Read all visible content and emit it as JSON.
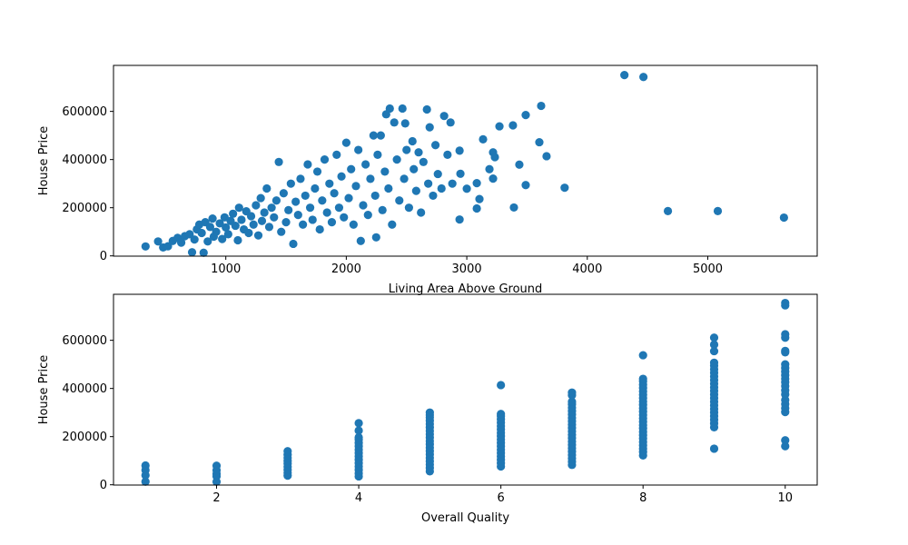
{
  "chart_data": [
    {
      "type": "scatter",
      "xlabel": "Living Area Above Ground",
      "ylabel": "House Price",
      "xlim": [
        68,
        5908
      ],
      "ylim": [
        -1105,
        791005
      ],
      "xticks": [
        1000,
        2000,
        3000,
        4000,
        5000
      ],
      "yticks": [
        0,
        200000,
        400000,
        600000
      ],
      "grid": false,
      "color": "#1f77b4",
      "points": [
        [
          334,
          39300
        ],
        [
          438,
          60000
        ],
        [
          480,
          35000
        ],
        [
          520,
          40000
        ],
        [
          560,
          62000
        ],
        [
          600,
          75000
        ],
        [
          630,
          55000
        ],
        [
          660,
          82000
        ],
        [
          700,
          90000
        ],
        [
          720,
          15000
        ],
        [
          740,
          68000
        ],
        [
          760,
          110000
        ],
        [
          780,
          130000
        ],
        [
          800,
          95000
        ],
        [
          816,
          13000
        ],
        [
          830,
          140000
        ],
        [
          850,
          60000
        ],
        [
          870,
          120000
        ],
        [
          890,
          155000
        ],
        [
          900,
          80000
        ],
        [
          920,
          100000
        ],
        [
          950,
          135000
        ],
        [
          970,
          70000
        ],
        [
          990,
          160000
        ],
        [
          1000,
          118000
        ],
        [
          1020,
          90000
        ],
        [
          1040,
          145000
        ],
        [
          1060,
          175000
        ],
        [
          1080,
          125000
        ],
        [
          1100,
          65000
        ],
        [
          1110,
          200000
        ],
        [
          1130,
          150000
        ],
        [
          1150,
          110000
        ],
        [
          1170,
          185000
        ],
        [
          1190,
          95000
        ],
        [
          1210,
          165000
        ],
        [
          1230,
          130000
        ],
        [
          1250,
          210000
        ],
        [
          1270,
          85000
        ],
        [
          1290,
          240000
        ],
        [
          1300,
          145000
        ],
        [
          1320,
          180000
        ],
        [
          1340,
          280000
        ],
        [
          1360,
          120000
        ],
        [
          1380,
          200000
        ],
        [
          1400,
          160000
        ],
        [
          1420,
          230000
        ],
        [
          1440,
          390000
        ],
        [
          1460,
          100000
        ],
        [
          1480,
          260000
        ],
        [
          1500,
          140000
        ],
        [
          1520,
          190000
        ],
        [
          1540,
          300000
        ],
        [
          1560,
          50000
        ],
        [
          1580,
          225000
        ],
        [
          1600,
          170000
        ],
        [
          1620,
          320000
        ],
        [
          1640,
          130000
        ],
        [
          1660,
          250000
        ],
        [
          1680,
          380000
        ],
        [
          1700,
          200000
        ],
        [
          1720,
          150000
        ],
        [
          1740,
          280000
        ],
        [
          1760,
          350000
        ],
        [
          1780,
          110000
        ],
        [
          1800,
          230000
        ],
        [
          1820,
          400000
        ],
        [
          1840,
          180000
        ],
        [
          1860,
          300000
        ],
        [
          1880,
          140000
        ],
        [
          1900,
          260000
        ],
        [
          1920,
          420000
        ],
        [
          1940,
          200000
        ],
        [
          1960,
          330000
        ],
        [
          1980,
          160000
        ],
        [
          2000,
          470000
        ],
        [
          2020,
          240000
        ],
        [
          2040,
          360000
        ],
        [
          2060,
          130000
        ],
        [
          2080,
          290000
        ],
        [
          2100,
          440000
        ],
        [
          2120,
          62000
        ],
        [
          2140,
          210000
        ],
        [
          2160,
          380000
        ],
        [
          2180,
          170000
        ],
        [
          2200,
          320000
        ],
        [
          2226,
          500000
        ],
        [
          2240,
          250000
        ],
        [
          2248,
          77000
        ],
        [
          2260,
          420000
        ],
        [
          2286,
          500000
        ],
        [
          2300,
          190000
        ],
        [
          2320,
          350000
        ],
        [
          2331,
          588000
        ],
        [
          2350,
          280000
        ],
        [
          2361,
          612000
        ],
        [
          2380,
          130000
        ],
        [
          2398,
          554000
        ],
        [
          2420,
          400000
        ],
        [
          2440,
          230000
        ],
        [
          2466,
          612000
        ],
        [
          2480,
          320000
        ],
        [
          2489,
          550000
        ],
        [
          2500,
          440000
        ],
        [
          2520,
          200000
        ],
        [
          2549,
          476000
        ],
        [
          2560,
          360000
        ],
        [
          2580,
          270000
        ],
        [
          2600,
          430000
        ],
        [
          2620,
          180000
        ],
        [
          2640,
          390000
        ],
        [
          2669,
          608000
        ],
        [
          2680,
          300000
        ],
        [
          2692,
          534000
        ],
        [
          2720,
          250000
        ],
        [
          2740,
          460000
        ],
        [
          2760,
          340000
        ],
        [
          2790,
          280000
        ],
        [
          2812,
          581000
        ],
        [
          2840,
          420000
        ],
        [
          2865,
          554000
        ],
        [
          2880,
          300000
        ],
        [
          2940,
          151000
        ],
        [
          2940,
          437000
        ],
        [
          2947,
          341000
        ],
        [
          3000,
          279000
        ],
        [
          3083,
          197000
        ],
        [
          3083,
          302000
        ],
        [
          3105,
          236000
        ],
        [
          3135,
          484000
        ],
        [
          3188,
          360000
        ],
        [
          3218,
          430000
        ],
        [
          3218,
          321000
        ],
        [
          3233,
          410000
        ],
        [
          3271,
          538000
        ],
        [
          3383,
          542000
        ],
        [
          3391,
          201000
        ],
        [
          3436,
          379000
        ],
        [
          3489,
          585000
        ],
        [
          3489,
          294000
        ],
        [
          3602,
          472000
        ],
        [
          3617,
          623000
        ],
        [
          3662,
          414000
        ],
        [
          3812,
          283000
        ],
        [
          4308,
          751000
        ],
        [
          4466,
          743000
        ],
        [
          4669,
          186000
        ],
        [
          5083,
          186000
        ],
        [
          5632,
          159000
        ]
      ]
    },
    {
      "type": "scatter",
      "xlabel": "Overall Quality",
      "ylabel": "House Price",
      "xlim": [
        0.55,
        10.45
      ],
      "ylim": [
        -1105,
        791005
      ],
      "xticks": [
        2,
        4,
        6,
        8,
        10
      ],
      "yticks": [
        0,
        200000,
        400000,
        600000
      ],
      "grid": false,
      "color": "#1f77b4",
      "groups": [
        {
          "x": 1,
          "values": [
            13000,
            39300,
            61000,
            80000
          ]
        },
        {
          "x": 2,
          "values": [
            12789,
            35311,
            45000,
            60000,
            79000
          ]
        },
        {
          "x": 3,
          "values": [
            37900,
            50000,
            62000,
            75000,
            88000,
            100000,
            112000,
            125000,
            139600
          ]
        },
        {
          "x": 4,
          "values": [
            34900,
            48000,
            62000,
            76000,
            90000,
            104000,
            118000,
            132000,
            146000,
            160000,
            174000,
            188000,
            197000,
            225000,
            256000
          ]
        },
        {
          "x": 5,
          "values": [
            56000,
            70000,
            84000,
            98000,
            112000,
            126000,
            140000,
            154000,
            168000,
            182000,
            196000,
            210000,
            224000,
            238000,
            252000,
            266000,
            280000,
            290000,
            300000
          ]
        },
        {
          "x": 6,
          "values": [
            76000,
            90000,
            104000,
            118000,
            132000,
            146000,
            160000,
            174000,
            188000,
            202000,
            216000,
            230000,
            244000,
            258000,
            272000,
            285000,
            294000,
            414000
          ]
        },
        {
          "x": 7,
          "values": [
            82500,
            96000,
            110000,
            124000,
            138000,
            152000,
            166000,
            180000,
            194000,
            208000,
            222000,
            236000,
            250000,
            264000,
            278000,
            292000,
            306000,
            320000,
            334000,
            345000,
            372000,
            383000
          ]
        },
        {
          "x": 8,
          "values": [
            122000,
            136000,
            150000,
            164000,
            178000,
            192000,
            206000,
            220000,
            234000,
            248000,
            262000,
            276000,
            290000,
            304000,
            318000,
            332000,
            346000,
            360000,
            374000,
            388000,
            402000,
            416000,
            430000,
            440000,
            538000
          ]
        },
        {
          "x": 9,
          "values": [
            150000,
            239000,
            255000,
            270000,
            285000,
            300000,
            315000,
            330000,
            345000,
            360000,
            375000,
            390000,
            405000,
            420000,
            435000,
            450000,
            465000,
            480000,
            495000,
            507000,
            555000,
            582000,
            611000
          ]
        },
        {
          "x": 10,
          "values": [
            160000,
            184750,
            302000,
            318000,
            335000,
            352000,
            375000,
            392000,
            410000,
            426000,
            440000,
            455000,
            470000,
            485000,
            500000,
            550000,
            556000,
            611000,
            625000,
            745000,
            755000
          ]
        }
      ]
    }
  ]
}
